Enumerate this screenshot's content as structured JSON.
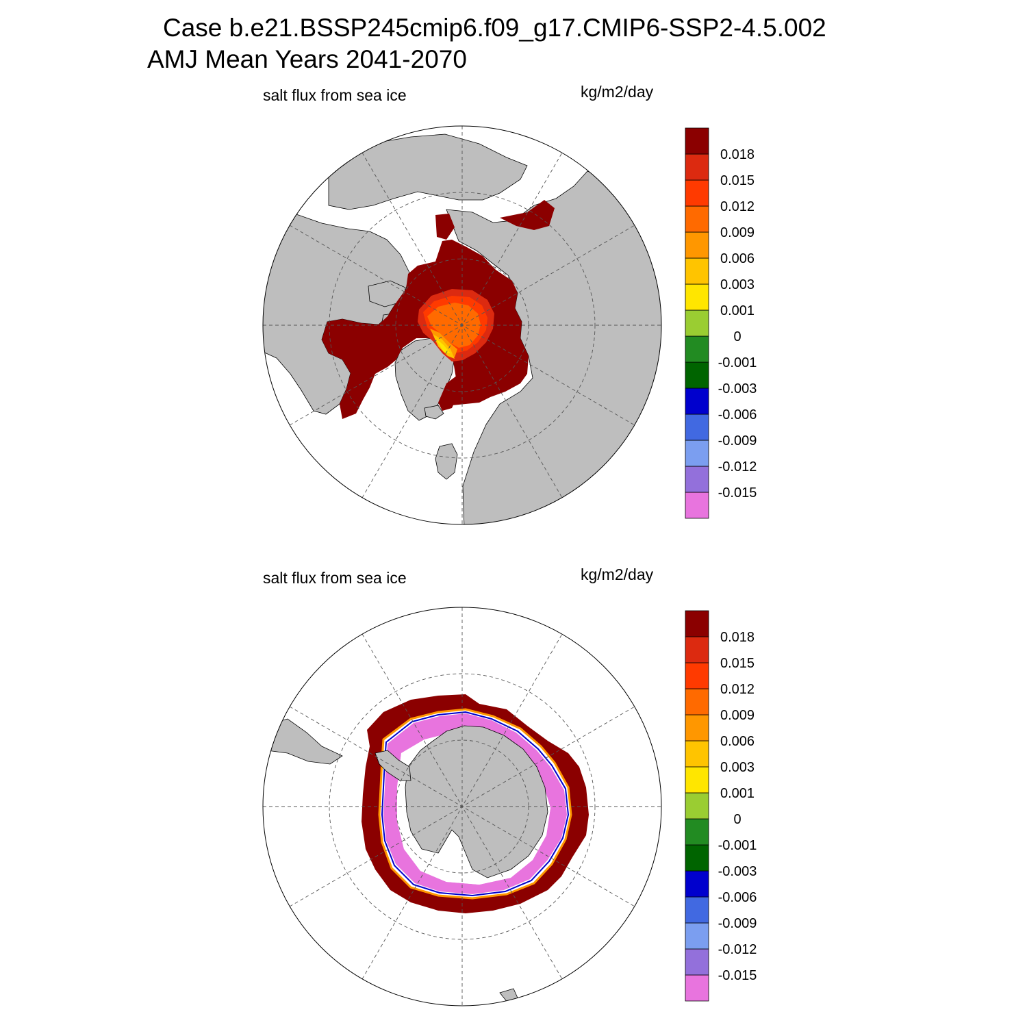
{
  "header": {
    "line1": "Case b.e21.BSSP245cmip6.f09_g17.CMIP6-SSP2-4.5.002",
    "line2": "AMJ Mean   Years 2041-2070"
  },
  "colors": {
    "land": "#bebebe",
    "ocean_no_ice": "#ffffff",
    "levels": [
      "#e874de",
      "#9370db",
      "#7b9ef0",
      "#4169e1",
      "#0000cd",
      "#006400",
      "#228b22",
      "#9acd32",
      "#ffe600",
      "#ffc400",
      "#ff9700",
      "#ff6a00",
      "#ff3a00",
      "#dc2a10",
      "#8b0000"
    ]
  },
  "panels": [
    {
      "id": "north",
      "left_label": "salt flux from sea ice",
      "right_label": "kg/m2/day",
      "projection": "north-polar-stereographic",
      "colorbar_labels": [
        "-0.015",
        "-0.012",
        "-0.009",
        "-0.006",
        "-0.003",
        "-0.001",
        "0",
        "0.001",
        "0.003",
        "0.006",
        "0.009",
        "0.012",
        "0.015",
        "0.018"
      ]
    },
    {
      "id": "south",
      "left_label": "salt flux from sea ice",
      "right_label": "kg/m2/day",
      "projection": "south-polar-stereographic",
      "colorbar_labels": [
        "-0.015",
        "-0.012",
        "-0.009",
        "-0.006",
        "-0.003",
        "-0.001",
        "0",
        "0.001",
        "0.003",
        "0.006",
        "0.009",
        "0.012",
        "0.015",
        "0.018"
      ]
    }
  ]
}
